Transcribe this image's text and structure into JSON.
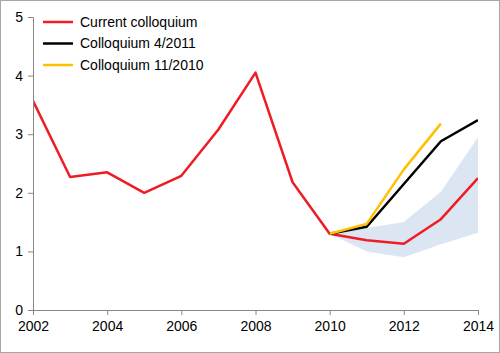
{
  "chart_data": {
    "type": "line",
    "x": [
      2002,
      2003,
      2004,
      2005,
      2006,
      2007,
      2008,
      2009,
      2010,
      2011,
      2012,
      2013,
      2014
    ],
    "series": [
      {
        "name": "Current colloquium",
        "color": "#ee1c25",
        "values": [
          3.57,
          2.27,
          2.35,
          2.0,
          2.29,
          3.08,
          4.05,
          2.18,
          1.3,
          1.19,
          1.13,
          1.55,
          2.25
        ]
      },
      {
        "name": "Colloquium 4/2011",
        "color": "#000000",
        "values": [
          null,
          null,
          null,
          null,
          null,
          null,
          null,
          null,
          1.3,
          1.42,
          2.15,
          2.88,
          3.24
        ]
      },
      {
        "name": "Colloquium 11/2010",
        "color": "#ffc000",
        "values": [
          null,
          null,
          null,
          null,
          null,
          null,
          null,
          null,
          1.3,
          1.47,
          2.4,
          3.18,
          null
        ]
      }
    ],
    "band": {
      "color": "#dce6f2",
      "lower": [
        null,
        null,
        null,
        null,
        null,
        null,
        null,
        null,
        1.3,
        1.0,
        0.9,
        1.12,
        1.32
      ],
      "upper": [
        null,
        null,
        null,
        null,
        null,
        null,
        null,
        null,
        1.3,
        1.4,
        1.5,
        2.02,
        2.95
      ]
    },
    "xlim": [
      2002,
      2014
    ],
    "xticks": [
      2002,
      2004,
      2006,
      2008,
      2010,
      2012,
      2014
    ],
    "ylim": [
      0,
      5
    ],
    "yticks": [
      0,
      1,
      2,
      3,
      4,
      5
    ],
    "grid": false,
    "legend": "upper left"
  }
}
